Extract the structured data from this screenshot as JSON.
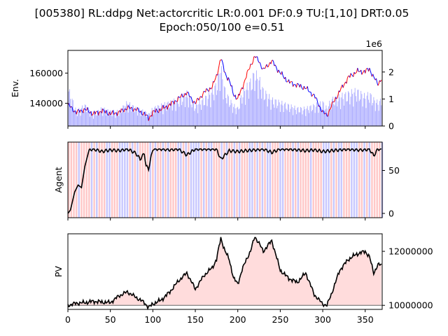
{
  "title": {
    "line1": "[005380] RL:ddpg Net:actorcritic LR:0.001 DF:0.9 TU:[1,10] DRT:0.05",
    "line2": "Epoch:050/100 e=0.51"
  },
  "colors": {
    "price_up": "#ff0000",
    "price_down": "#0000ff",
    "volume": "#aaaaff",
    "buy_band": "#ffc8c8",
    "sell_band": "#c8c8ff",
    "line": "#000000",
    "pv_fill": "#ffdcdc",
    "baseline": "#808080"
  },
  "chart_data": [
    {
      "type": "line",
      "name": "env",
      "ylabel": "Env.",
      "xlim": [
        0,
        370
      ],
      "ylim": [
        125000,
        175000
      ],
      "yticks": [
        140000,
        160000
      ],
      "ytick_labels": [
        "140000",
        "160000"
      ],
      "secondary_axis": {
        "label": "volume",
        "ylim": [
          0,
          2800000
        ],
        "offset_text": "1e6",
        "ticks": [
          0,
          1000000,
          2000000
        ],
        "tick_labels": [
          "0",
          "1",
          "2"
        ]
      },
      "x": [
        0,
        10,
        20,
        30,
        40,
        50,
        60,
        70,
        80,
        90,
        95,
        100,
        110,
        120,
        130,
        140,
        150,
        160,
        170,
        175,
        180,
        182,
        185,
        190,
        195,
        200,
        205,
        210,
        215,
        220,
        225,
        230,
        240,
        250,
        260,
        270,
        280,
        290,
        300,
        305,
        310,
        320,
        330,
        340,
        350,
        355,
        360,
        365,
        370
      ],
      "close": [
        139000,
        134000,
        136000,
        133000,
        135000,
        133000,
        134000,
        137000,
        136000,
        133000,
        130000,
        134000,
        136000,
        139000,
        143000,
        147000,
        140000,
        147000,
        151000,
        158000,
        170000,
        166000,
        160000,
        155000,
        146000,
        143000,
        150000,
        158000,
        165000,
        171000,
        168000,
        162000,
        168000,
        160000,
        154000,
        152000,
        150000,
        145000,
        134000,
        132000,
        138000,
        148000,
        157000,
        161000,
        161000,
        163000,
        157000,
        153000,
        157000
      ],
      "volume": [
        1300000,
        500000,
        700000,
        400000,
        600000,
        500000,
        500000,
        800000,
        600000,
        500000,
        400000,
        600000,
        700000,
        800000,
        900000,
        1100000,
        700000,
        900000,
        1200000,
        1400000,
        2000000,
        1700000,
        1200000,
        900000,
        700000,
        600000,
        1100000,
        1300000,
        1500000,
        1800000,
        1600000,
        1200000,
        900000,
        800000,
        700000,
        600000,
        600000,
        700000,
        800000,
        600000,
        900000,
        1000000,
        1100000,
        1200000,
        1000000,
        1100000,
        900000,
        800000,
        900000
      ]
    },
    {
      "type": "line",
      "name": "agent",
      "ylabel": "Agent",
      "xlim": [
        0,
        370
      ],
      "ylim": [
        -5,
        83
      ],
      "yticks": [
        0,
        50
      ],
      "ytick_labels": [
        "0",
        "50"
      ],
      "x": [
        0,
        3,
        8,
        12,
        16,
        20,
        25,
        30,
        40,
        50,
        60,
        70,
        80,
        85,
        90,
        92,
        95,
        100,
        110,
        120,
        130,
        140,
        150,
        160,
        170,
        175,
        180,
        190,
        200,
        210,
        220,
        230,
        240,
        250,
        260,
        270,
        280,
        290,
        300,
        310,
        320,
        330,
        340,
        350,
        355,
        360,
        365,
        370
      ],
      "values": [
        0,
        4,
        25,
        33,
        30,
        55,
        74,
        75,
        72,
        74,
        73,
        75,
        70,
        63,
        70,
        55,
        52,
        75,
        75,
        74,
        75,
        68,
        75,
        75,
        75,
        75,
        63,
        73,
        72,
        73,
        74,
        75,
        71,
        75,
        75,
        74,
        73,
        74,
        72,
        73,
        74,
        75,
        74,
        74,
        75,
        67,
        75,
        75
      ]
    },
    {
      "type": "area",
      "name": "pv",
      "ylabel": "PV",
      "xlim": [
        0,
        370
      ],
      "ylim": [
        9850000,
        12650000
      ],
      "yticks": [
        10000000,
        12000000
      ],
      "ytick_labels": [
        "10000000",
        "12000000"
      ],
      "baseline": 10000000,
      "x": [
        0,
        10,
        20,
        30,
        40,
        50,
        60,
        70,
        80,
        90,
        95,
        100,
        110,
        120,
        130,
        140,
        150,
        160,
        170,
        175,
        180,
        185,
        190,
        195,
        200,
        205,
        210,
        215,
        220,
        225,
        230,
        240,
        250,
        260,
        270,
        280,
        290,
        300,
        305,
        310,
        320,
        330,
        340,
        350,
        355,
        360,
        365,
        370
      ],
      "values": [
        10000000,
        10080000,
        10100000,
        10150000,
        10120000,
        10100000,
        10350000,
        10500000,
        10300000,
        10100000,
        9920000,
        10050000,
        10200000,
        10500000,
        10900000,
        11200000,
        10600000,
        11100000,
        11400000,
        11700000,
        12500000,
        12000000,
        11700000,
        11000000,
        10800000,
        11300000,
        11700000,
        12000000,
        12550000,
        12300000,
        12000000,
        12400000,
        11300000,
        11000000,
        10850000,
        11200000,
        10400000,
        10050000,
        10000000,
        10400000,
        11300000,
        11700000,
        11900000,
        12000000,
        11800000,
        11200000,
        11500000,
        11500000
      ]
    }
  ],
  "x_ticks": [
    0,
    50,
    100,
    150,
    200,
    250,
    300,
    350
  ],
  "x_tick_labels": [
    "0",
    "50",
    "100",
    "150",
    "200",
    "250",
    "300",
    "350"
  ]
}
